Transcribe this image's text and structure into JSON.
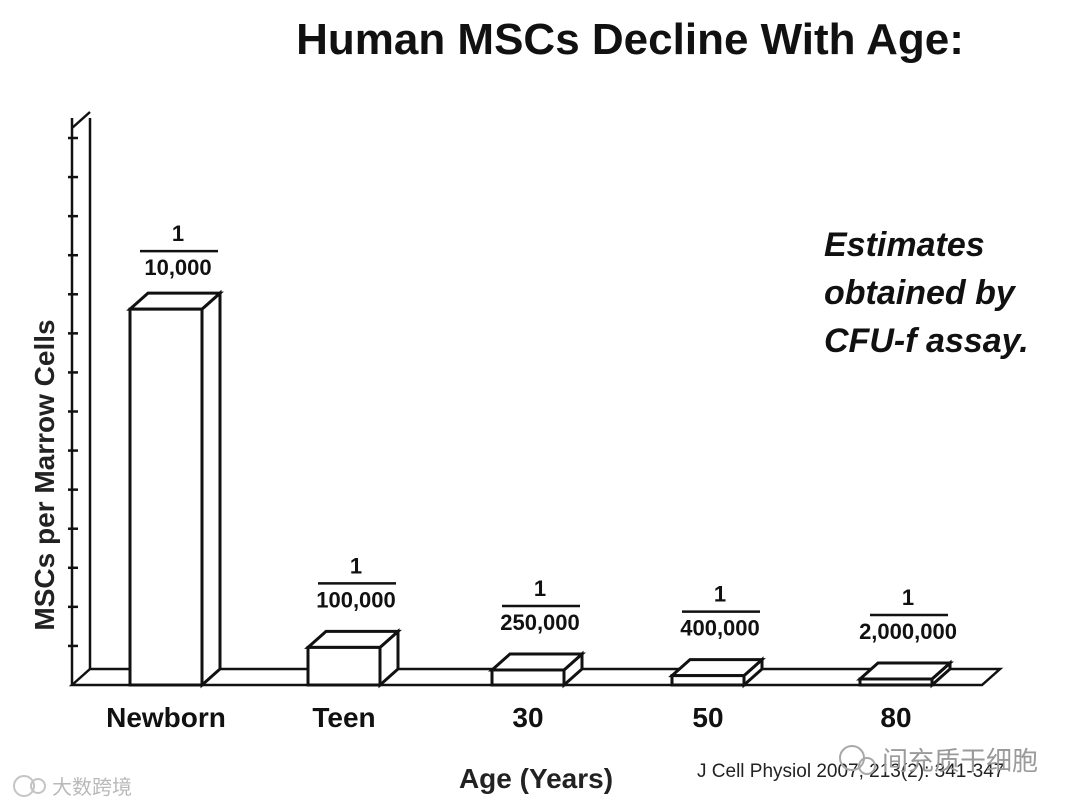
{
  "chart_data": {
    "type": "bar",
    "title": "Human MSCs Decline With Age:",
    "xlabel": "Age (Years)",
    "ylabel": "MSCs per Marrow Cells",
    "categories": [
      "Newborn",
      "Teen",
      "30",
      "50",
      "80"
    ],
    "values": [
      1.0,
      0.1,
      0.04,
      0.025,
      0.005
    ],
    "data_labels": [
      {
        "numerator": "1",
        "denominator": "10,000"
      },
      {
        "numerator": "1",
        "denominator": "100,000"
      },
      {
        "numerator": "1",
        "denominator": "250,000"
      },
      {
        "numerator": "1",
        "denominator": "400,000"
      },
      {
        "numerator": "1",
        "denominator": "2,000,000"
      }
    ],
    "ylim": [
      0,
      1.45
    ],
    "grid": false,
    "annotation": [
      "Estimates",
      "obtained by",
      "CFU-f assay."
    ],
    "citation": "J Cell Physiol 2007, 213(2): 341-347"
  },
  "watermarks": {
    "left": "大数跨境",
    "right": "间充质干细胞"
  },
  "colors": {
    "ink": "#111111",
    "bar_fill": "#ffffff",
    "background": "#ffffff"
  }
}
